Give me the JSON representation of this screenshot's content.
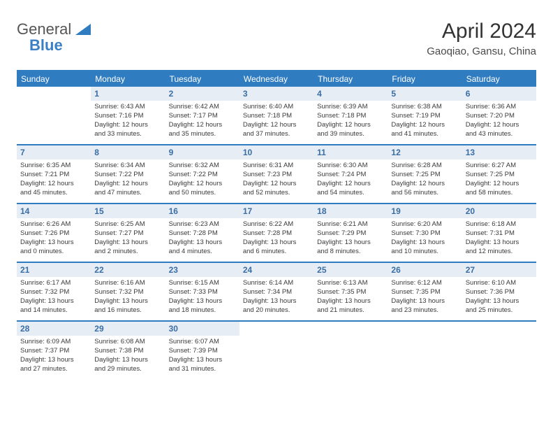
{
  "logo": {
    "text_a": "General",
    "text_b": "Blue"
  },
  "title": "April 2024",
  "subtitle": "Gaoqiao, Gansu, China",
  "colors": {
    "brand": "#2f7cc0",
    "daynum_bg": "#e6edf4",
    "daynum_fg": "#3a6ea5",
    "text": "#3a3a3a"
  },
  "day_labels": [
    "Sunday",
    "Monday",
    "Tuesday",
    "Wednesday",
    "Thursday",
    "Friday",
    "Saturday"
  ],
  "weeks": [
    [
      null,
      {
        "n": "1",
        "sr": "Sunrise: 6:43 AM",
        "ss": "Sunset: 7:16 PM",
        "d1": "Daylight: 12 hours",
        "d2": "and 33 minutes."
      },
      {
        "n": "2",
        "sr": "Sunrise: 6:42 AM",
        "ss": "Sunset: 7:17 PM",
        "d1": "Daylight: 12 hours",
        "d2": "and 35 minutes."
      },
      {
        "n": "3",
        "sr": "Sunrise: 6:40 AM",
        "ss": "Sunset: 7:18 PM",
        "d1": "Daylight: 12 hours",
        "d2": "and 37 minutes."
      },
      {
        "n": "4",
        "sr": "Sunrise: 6:39 AM",
        "ss": "Sunset: 7:18 PM",
        "d1": "Daylight: 12 hours",
        "d2": "and 39 minutes."
      },
      {
        "n": "5",
        "sr": "Sunrise: 6:38 AM",
        "ss": "Sunset: 7:19 PM",
        "d1": "Daylight: 12 hours",
        "d2": "and 41 minutes."
      },
      {
        "n": "6",
        "sr": "Sunrise: 6:36 AM",
        "ss": "Sunset: 7:20 PM",
        "d1": "Daylight: 12 hours",
        "d2": "and 43 minutes."
      }
    ],
    [
      {
        "n": "7",
        "sr": "Sunrise: 6:35 AM",
        "ss": "Sunset: 7:21 PM",
        "d1": "Daylight: 12 hours",
        "d2": "and 45 minutes."
      },
      {
        "n": "8",
        "sr": "Sunrise: 6:34 AM",
        "ss": "Sunset: 7:22 PM",
        "d1": "Daylight: 12 hours",
        "d2": "and 47 minutes."
      },
      {
        "n": "9",
        "sr": "Sunrise: 6:32 AM",
        "ss": "Sunset: 7:22 PM",
        "d1": "Daylight: 12 hours",
        "d2": "and 50 minutes."
      },
      {
        "n": "10",
        "sr": "Sunrise: 6:31 AM",
        "ss": "Sunset: 7:23 PM",
        "d1": "Daylight: 12 hours",
        "d2": "and 52 minutes."
      },
      {
        "n": "11",
        "sr": "Sunrise: 6:30 AM",
        "ss": "Sunset: 7:24 PM",
        "d1": "Daylight: 12 hours",
        "d2": "and 54 minutes."
      },
      {
        "n": "12",
        "sr": "Sunrise: 6:28 AM",
        "ss": "Sunset: 7:25 PM",
        "d1": "Daylight: 12 hours",
        "d2": "and 56 minutes."
      },
      {
        "n": "13",
        "sr": "Sunrise: 6:27 AM",
        "ss": "Sunset: 7:25 PM",
        "d1": "Daylight: 12 hours",
        "d2": "and 58 minutes."
      }
    ],
    [
      {
        "n": "14",
        "sr": "Sunrise: 6:26 AM",
        "ss": "Sunset: 7:26 PM",
        "d1": "Daylight: 13 hours",
        "d2": "and 0 minutes."
      },
      {
        "n": "15",
        "sr": "Sunrise: 6:25 AM",
        "ss": "Sunset: 7:27 PM",
        "d1": "Daylight: 13 hours",
        "d2": "and 2 minutes."
      },
      {
        "n": "16",
        "sr": "Sunrise: 6:23 AM",
        "ss": "Sunset: 7:28 PM",
        "d1": "Daylight: 13 hours",
        "d2": "and 4 minutes."
      },
      {
        "n": "17",
        "sr": "Sunrise: 6:22 AM",
        "ss": "Sunset: 7:28 PM",
        "d1": "Daylight: 13 hours",
        "d2": "and 6 minutes."
      },
      {
        "n": "18",
        "sr": "Sunrise: 6:21 AM",
        "ss": "Sunset: 7:29 PM",
        "d1": "Daylight: 13 hours",
        "d2": "and 8 minutes."
      },
      {
        "n": "19",
        "sr": "Sunrise: 6:20 AM",
        "ss": "Sunset: 7:30 PM",
        "d1": "Daylight: 13 hours",
        "d2": "and 10 minutes."
      },
      {
        "n": "20",
        "sr": "Sunrise: 6:18 AM",
        "ss": "Sunset: 7:31 PM",
        "d1": "Daylight: 13 hours",
        "d2": "and 12 minutes."
      }
    ],
    [
      {
        "n": "21",
        "sr": "Sunrise: 6:17 AM",
        "ss": "Sunset: 7:32 PM",
        "d1": "Daylight: 13 hours",
        "d2": "and 14 minutes."
      },
      {
        "n": "22",
        "sr": "Sunrise: 6:16 AM",
        "ss": "Sunset: 7:32 PM",
        "d1": "Daylight: 13 hours",
        "d2": "and 16 minutes."
      },
      {
        "n": "23",
        "sr": "Sunrise: 6:15 AM",
        "ss": "Sunset: 7:33 PM",
        "d1": "Daylight: 13 hours",
        "d2": "and 18 minutes."
      },
      {
        "n": "24",
        "sr": "Sunrise: 6:14 AM",
        "ss": "Sunset: 7:34 PM",
        "d1": "Daylight: 13 hours",
        "d2": "and 20 minutes."
      },
      {
        "n": "25",
        "sr": "Sunrise: 6:13 AM",
        "ss": "Sunset: 7:35 PM",
        "d1": "Daylight: 13 hours",
        "d2": "and 21 minutes."
      },
      {
        "n": "26",
        "sr": "Sunrise: 6:12 AM",
        "ss": "Sunset: 7:35 PM",
        "d1": "Daylight: 13 hours",
        "d2": "and 23 minutes."
      },
      {
        "n": "27",
        "sr": "Sunrise: 6:10 AM",
        "ss": "Sunset: 7:36 PM",
        "d1": "Daylight: 13 hours",
        "d2": "and 25 minutes."
      }
    ],
    [
      {
        "n": "28",
        "sr": "Sunrise: 6:09 AM",
        "ss": "Sunset: 7:37 PM",
        "d1": "Daylight: 13 hours",
        "d2": "and 27 minutes."
      },
      {
        "n": "29",
        "sr": "Sunrise: 6:08 AM",
        "ss": "Sunset: 7:38 PM",
        "d1": "Daylight: 13 hours",
        "d2": "and 29 minutes."
      },
      {
        "n": "30",
        "sr": "Sunrise: 6:07 AM",
        "ss": "Sunset: 7:39 PM",
        "d1": "Daylight: 13 hours",
        "d2": "and 31 minutes."
      },
      null,
      null,
      null,
      null
    ]
  ]
}
